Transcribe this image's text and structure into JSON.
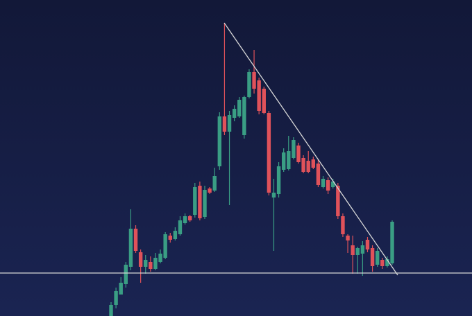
{
  "chart_data": {
    "type": "candlestick",
    "up_color": "#3a9e84",
    "down_color": "#e0525a",
    "ylim": [
      0,
      456
    ],
    "open": [
      0,
      16,
      31,
      46,
      71,
      126,
      92,
      71,
      78,
      68,
      78,
      84,
      116,
      111,
      118,
      134,
      144,
      146,
      188,
      143,
      184,
      181,
      216,
      288,
      266,
      286,
      288,
      261,
      316,
      352,
      340,
      328,
      293,
      171,
      176,
      211,
      212,
      228,
      246,
      228,
      224,
      226,
      220,
      186,
      196,
      186,
      188,
      144,
      116,
      102,
      88,
      90,
      110,
      98,
      74,
      81,
      72,
      76
    ],
    "high": [
      20,
      41,
      56,
      78,
      154,
      131,
      96,
      88,
      86,
      91,
      96,
      121,
      120,
      128,
      144,
      148,
      146,
      192,
      194,
      188,
      186,
      214,
      294,
      423,
      296,
      304,
      316,
      318,
      356,
      384,
      344,
      331,
      296,
      198,
      222,
      242,
      260,
      258,
      250,
      232,
      238,
      230,
      226,
      202,
      200,
      198,
      192,
      148,
      118,
      116,
      100,
      108,
      114,
      102,
      98,
      84,
      86,
      138
    ],
    "low": [
      0,
      11,
      31,
      41,
      66,
      91,
      48,
      61,
      64,
      66,
      76,
      82,
      106,
      109,
      116,
      132,
      136,
      142,
      138,
      140,
      176,
      179,
      211,
      261,
      160,
      281,
      286,
      256,
      314,
      321,
      291,
      291,
      174,
      94,
      171,
      208,
      210,
      226,
      220,
      206,
      206,
      212,
      186,
      184,
      176,
      184,
      140,
      114,
      91,
      61,
      61,
      58,
      92,
      64,
      71,
      68,
      70,
      74
    ],
    "close": [
      16,
      36,
      48,
      74,
      126,
      94,
      71,
      81,
      68,
      84,
      90,
      118,
      110,
      123,
      138,
      144,
      138,
      186,
      141,
      182,
      178,
      202,
      288,
      266,
      290,
      299,
      312,
      316,
      352,
      328,
      296,
      293,
      178,
      178,
      216,
      236,
      238,
      254,
      222,
      208,
      208,
      214,
      189,
      198,
      181,
      194,
      144,
      118,
      109,
      88,
      98,
      102,
      96,
      72,
      94,
      72,
      82,
      136
    ]
  }
}
